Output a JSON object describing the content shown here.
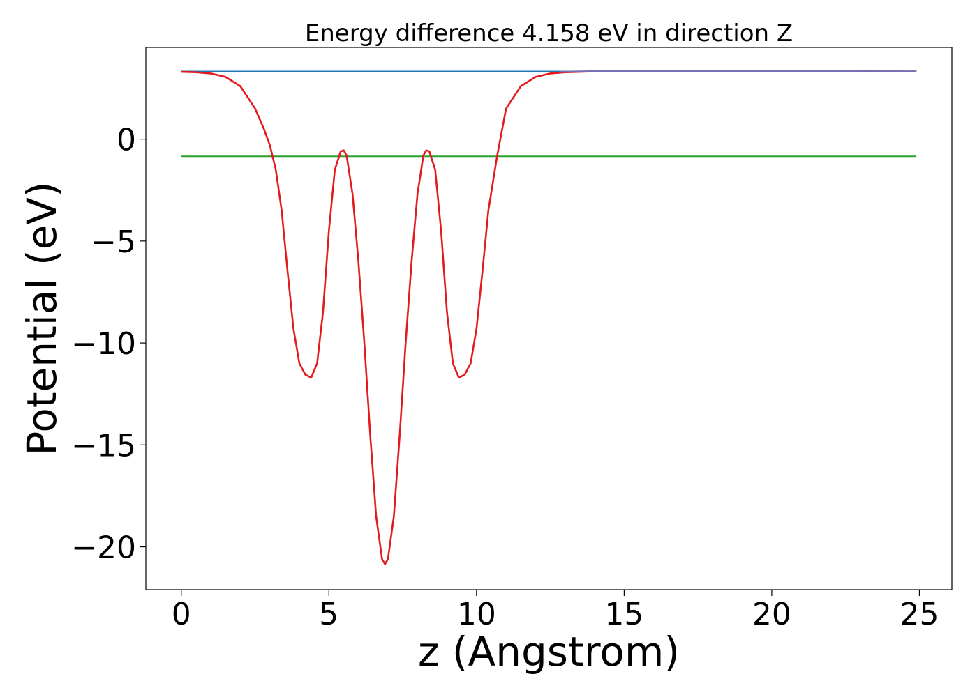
{
  "chart_data": {
    "type": "line",
    "title": "Energy difference 4.158 eV in direction Z",
    "xlabel": "z (Angstrom)",
    "ylabel": "Potential (eV)",
    "xlim": [
      -1.2,
      26.1
    ],
    "ylim": [
      -22.1,
      4.5
    ],
    "xticks": [
      0,
      5,
      10,
      15,
      20,
      25
    ],
    "xtick_labels": [
      "0",
      "5",
      "10",
      "15",
      "20",
      "25"
    ],
    "yticks": [
      0,
      -5,
      -10,
      -15,
      -20
    ],
    "ytick_labels": [
      "0",
      "−5",
      "−10",
      "−15",
      "−20"
    ],
    "grid": false,
    "legend": "none",
    "series": [
      {
        "color": "#1f77b4",
        "style": "constant",
        "x": [
          0,
          24.9
        ],
        "y": [
          3.32,
          3.32
        ]
      },
      {
        "color": "#2ca02c",
        "style": "constant",
        "x": [
          0,
          24.9
        ],
        "y": [
          -0.84,
          -0.84
        ]
      },
      {
        "color": "#e41a1c",
        "style": "curve",
        "x": [
          0,
          0.5,
          1.0,
          1.5,
          2.0,
          2.5,
          2.8,
          3.0,
          3.2,
          3.4,
          3.6,
          3.8,
          4.0,
          4.2,
          4.4,
          4.6,
          4.8,
          5.0,
          5.2,
          5.4,
          5.5,
          5.6,
          5.8,
          6.0,
          6.2,
          6.4,
          6.6,
          6.8,
          6.9,
          7.0,
          7.2,
          7.4,
          7.6,
          7.8,
          8.0,
          8.2,
          8.3,
          8.4,
          8.6,
          8.8,
          9.0,
          9.2,
          9.4,
          9.6,
          9.8,
          10.0,
          10.2,
          10.4,
          10.7,
          11.0,
          11.5,
          12.0,
          12.5,
          13.0,
          14.0,
          16.0,
          20.0,
          24.9
        ],
        "y": [
          3.3,
          3.28,
          3.22,
          3.05,
          2.6,
          1.5,
          0.5,
          -0.3,
          -1.5,
          -3.5,
          -6.5,
          -9.3,
          -11.0,
          -11.55,
          -11.7,
          -11.0,
          -8.5,
          -4.5,
          -1.5,
          -0.6,
          -0.55,
          -0.8,
          -2.7,
          -6.0,
          -10.0,
          -14.5,
          -18.5,
          -20.6,
          -20.85,
          -20.6,
          -18.5,
          -14.5,
          -10.0,
          -6.0,
          -2.7,
          -0.8,
          -0.55,
          -0.6,
          -1.5,
          -4.5,
          -8.5,
          -11.0,
          -11.7,
          -11.55,
          -11.0,
          -9.3,
          -6.5,
          -3.5,
          -0.8,
          1.5,
          2.6,
          3.05,
          3.22,
          3.28,
          3.32,
          3.34,
          3.34,
          3.32
        ]
      },
      {
        "color": "#7570b3",
        "style": "overlay",
        "x": [
          12.8,
          14.0,
          16.0,
          20.0,
          24.9
        ],
        "y": [
          3.3,
          3.33,
          3.34,
          3.34,
          3.32
        ]
      }
    ]
  }
}
